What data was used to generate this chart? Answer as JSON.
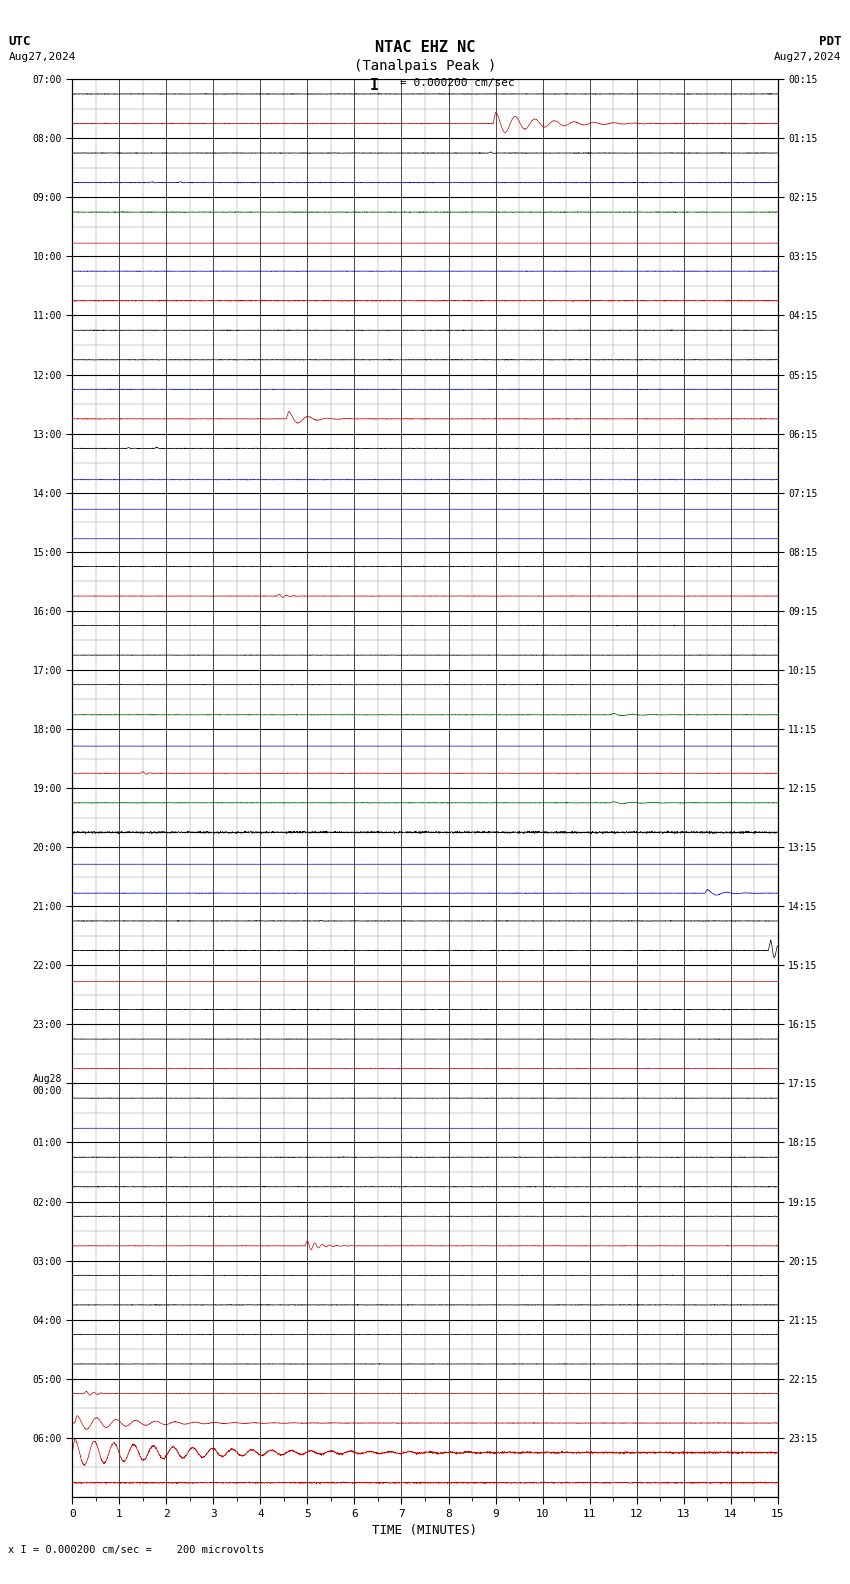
{
  "title_line1": "NTAC EHZ NC",
  "title_line2": "(Tanalpais Peak )",
  "scale_text": "I = 0.000200 cm/sec",
  "utc_label": "UTC",
  "utc_date": "Aug27,2024",
  "pdt_label": "PDT",
  "pdt_date": "Aug27,2024",
  "xlabel": "TIME (MINUTES)",
  "bottom_label": "x I = 0.000200 cm/sec =    200 microvolts",
  "xmin": 0,
  "xmax": 15,
  "background_color": "#ffffff",
  "left_times_utc": [
    "07:00",
    "08:00",
    "09:00",
    "10:00",
    "11:00",
    "12:00",
    "13:00",
    "14:00",
    "15:00",
    "16:00",
    "17:00",
    "18:00",
    "19:00",
    "20:00",
    "21:00",
    "22:00",
    "23:00",
    "Aug28\n00:00",
    "01:00",
    "02:00",
    "03:00",
    "04:00",
    "05:00",
    "06:00"
  ],
  "right_times_pdt": [
    "00:15",
    "01:15",
    "02:15",
    "03:15",
    "04:15",
    "05:15",
    "06:15",
    "07:15",
    "08:15",
    "09:15",
    "10:15",
    "11:15",
    "12:15",
    "13:15",
    "14:15",
    "15:15",
    "16:15",
    "17:15",
    "18:15",
    "19:15",
    "20:15",
    "21:15",
    "22:15",
    "23:15"
  ],
  "num_hours": 24,
  "subrows_per_hour": 2,
  "fig_width": 8.5,
  "fig_height": 15.84
}
